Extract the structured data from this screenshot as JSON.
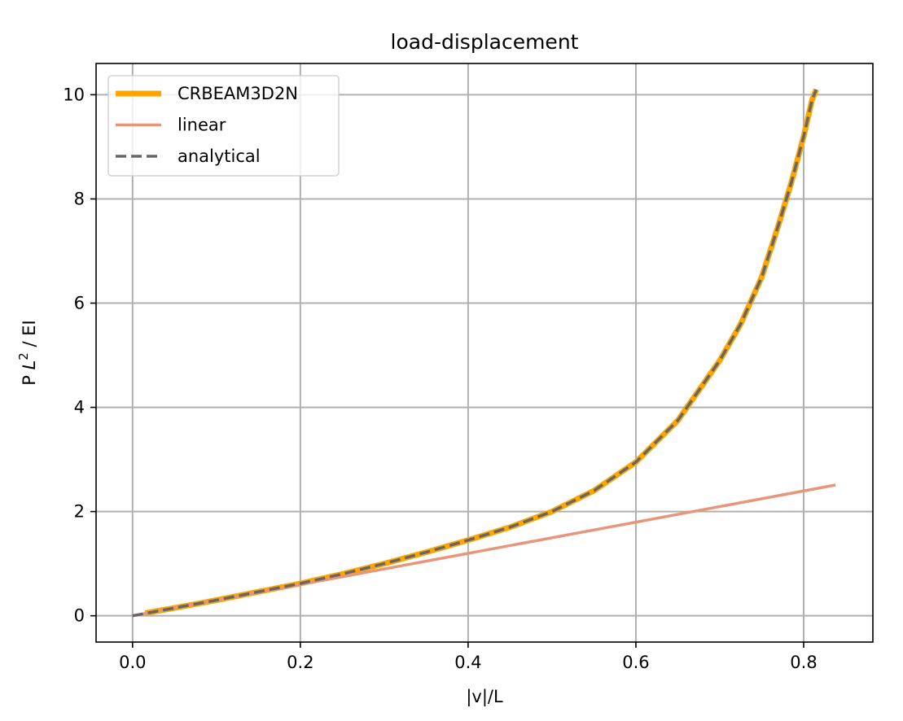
{
  "chart_data": {
    "type": "line",
    "title": "load-displacement",
    "xlabel": "|v|/L",
    "ylabel": {
      "prefix": "P ",
      "symbol": "L",
      "superscript": "2",
      "suffix": " / EI"
    },
    "xlim": [
      -0.0435,
      0.8825
    ],
    "ylim": [
      -0.505,
      10.6
    ],
    "x_ticks": [
      0.0,
      0.2,
      0.4,
      0.6,
      0.8
    ],
    "x_tick_labels": [
      "0.0",
      "0.2",
      "0.4",
      "0.6",
      "0.8"
    ],
    "y_ticks": [
      0,
      2,
      4,
      6,
      8,
      10
    ],
    "y_tick_labels": [
      "0",
      "2",
      "4",
      "6",
      "8",
      "10"
    ],
    "grid": true,
    "legend_position": "upper-left",
    "series": [
      {
        "name": "CRBEAM3D2N",
        "color": "#ffa500",
        "style": "solid",
        "width": "thick",
        "x": [
          0.015,
          0.05,
          0.1,
          0.15,
          0.2,
          0.25,
          0.3,
          0.35,
          0.4,
          0.45,
          0.5,
          0.55,
          0.6,
          0.65,
          0.7,
          0.725,
          0.75,
          0.77,
          0.785,
          0.8,
          0.81,
          0.815
        ],
        "y": [
          0.05,
          0.15,
          0.3,
          0.46,
          0.62,
          0.8,
          1.0,
          1.22,
          1.45,
          1.7,
          2.0,
          2.4,
          2.95,
          3.75,
          4.9,
          5.6,
          6.5,
          7.5,
          8.3,
          9.2,
          9.9,
          10.1
        ]
      },
      {
        "name": "linear",
        "color": "#e8967a",
        "style": "solid",
        "width": "normal",
        "x": [
          0.0,
          0.838
        ],
        "y": [
          0.0,
          2.51
        ]
      },
      {
        "name": "analytical",
        "color": "#666666",
        "style": "dashed",
        "width": "normal",
        "x": [
          0.0,
          0.05,
          0.1,
          0.15,
          0.2,
          0.25,
          0.3,
          0.35,
          0.4,
          0.45,
          0.5,
          0.55,
          0.6,
          0.65,
          0.7,
          0.725,
          0.75,
          0.77,
          0.785,
          0.8,
          0.81,
          0.815
        ],
        "y": [
          0.0,
          0.15,
          0.3,
          0.46,
          0.62,
          0.8,
          1.0,
          1.22,
          1.45,
          1.7,
          2.0,
          2.4,
          2.95,
          3.75,
          4.9,
          5.6,
          6.5,
          7.5,
          8.3,
          9.2,
          9.9,
          10.1
        ]
      }
    ]
  }
}
